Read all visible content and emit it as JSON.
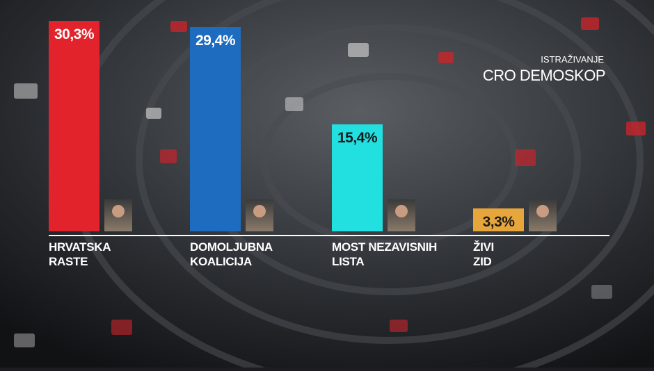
{
  "chart_data": {
    "type": "bar",
    "subtitle": "ISTRAŽIVANJE",
    "title": "CRO DEMOSKOP",
    "categories": [
      "HRVATSKA RASTE",
      "DOMOLJUBNA KOALICIJA",
      "MOST NEZAVISNIH LISTA",
      "ŽIVI ZID"
    ],
    "values": [
      30.3,
      29.4,
      15.4,
      3.3
    ],
    "value_labels": [
      "30,3%",
      "29,4%",
      "15,4%",
      "3,3%"
    ],
    "colors": [
      "#e3232c",
      "#1e6cc0",
      "#22dfe0",
      "#e6a63c"
    ]
  }
}
